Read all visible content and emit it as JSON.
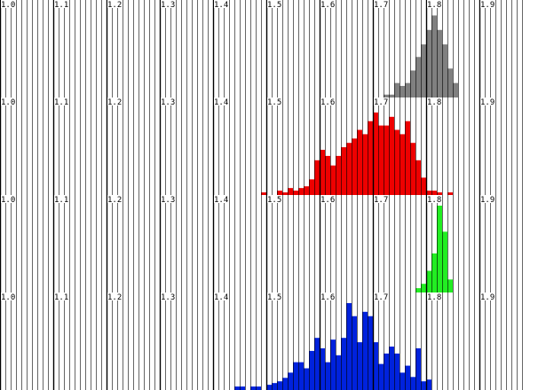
{
  "chart_data": [
    {
      "type": "bar",
      "panel": "gray",
      "color": "#808080",
      "x": [
        1.72,
        1.73,
        1.74,
        1.75,
        1.76,
        1.77,
        1.78,
        1.79,
        1.8,
        1.81,
        1.82,
        1.83,
        1.84,
        1.85
      ],
      "values": [
        3,
        3,
        15,
        12,
        15,
        28,
        42,
        55,
        70,
        85,
        70,
        55,
        30,
        15
      ],
      "xlim": [
        1.0,
        1.98
      ],
      "ticks": [
        "1.0",
        "1.1",
        "1.2",
        "1.3",
        "1.4",
        "1.5",
        "1.6",
        "1.7",
        "1.8",
        "1.9"
      ],
      "grid": true,
      "ylim": [
        0,
        90
      ]
    },
    {
      "type": "bar",
      "panel": "red",
      "color": "#ee0000",
      "x": [
        1.49,
        1.52,
        1.53,
        1.54,
        1.55,
        1.56,
        1.57,
        1.58,
        1.59,
        1.6,
        1.61,
        1.62,
        1.63,
        1.64,
        1.65,
        1.66,
        1.67,
        1.68,
        1.69,
        1.7,
        1.71,
        1.72,
        1.73,
        1.74,
        1.75,
        1.76,
        1.77,
        1.78,
        1.79,
        1.8,
        1.81,
        1.82,
        1.84
      ],
      "values": [
        3,
        5,
        3,
        8,
        5,
        8,
        10,
        18,
        40,
        52,
        45,
        34,
        45,
        55,
        60,
        65,
        75,
        70,
        85,
        95,
        80,
        80,
        90,
        75,
        70,
        85,
        60,
        40,
        20,
        5,
        5,
        3,
        3
      ],
      "xlim": [
        1.0,
        1.98
      ],
      "ticks": [
        "1.0",
        "1.1",
        "1.2",
        "1.3",
        "1.4",
        "1.5",
        "1.6",
        "1.7",
        "1.8",
        "1.9"
      ],
      "grid": true,
      "ylim": [
        0,
        100
      ]
    },
    {
      "type": "bar",
      "panel": "green",
      "color": "#22ee22",
      "x": [
        1.78,
        1.79,
        1.8,
        1.81,
        1.82,
        1.83,
        1.84
      ],
      "values": [
        5,
        10,
        25,
        45,
        100,
        70,
        15
      ],
      "xlim": [
        1.0,
        1.98
      ],
      "ticks": [
        "1.0",
        "1.1",
        "1.2",
        "1.3",
        "1.4",
        "1.5",
        "1.6",
        "1.7",
        "1.8",
        "1.9"
      ],
      "grid": true,
      "ylim": [
        0,
        100
      ]
    },
    {
      "type": "bar",
      "panel": "blue",
      "color": "#0022dd",
      "x": [
        1.44,
        1.45,
        1.47,
        1.48,
        1.5,
        1.51,
        1.52,
        1.53,
        1.54,
        1.55,
        1.56,
        1.57,
        1.58,
        1.59,
        1.6,
        1.61,
        1.62,
        1.63,
        1.64,
        1.65,
        1.66,
        1.67,
        1.68,
        1.69,
        1.7,
        1.71,
        1.72,
        1.73,
        1.74,
        1.75,
        1.76,
        1.77,
        1.78,
        1.79,
        1.8
      ],
      "values": [
        4,
        4,
        4,
        4,
        6,
        8,
        10,
        14,
        20,
        32,
        32,
        25,
        45,
        60,
        48,
        32,
        58,
        40,
        60,
        100,
        85,
        55,
        90,
        85,
        55,
        30,
        42,
        50,
        42,
        20,
        28,
        15,
        48,
        10,
        12
      ],
      "xlim": [
        1.0,
        1.98
      ],
      "ticks": [
        "1.0",
        "1.1",
        "1.2",
        "1.3",
        "1.4",
        "1.5",
        "1.6",
        "1.7",
        "1.8",
        "1.9"
      ],
      "grid": true,
      "ylim": [
        0,
        100
      ]
    }
  ]
}
